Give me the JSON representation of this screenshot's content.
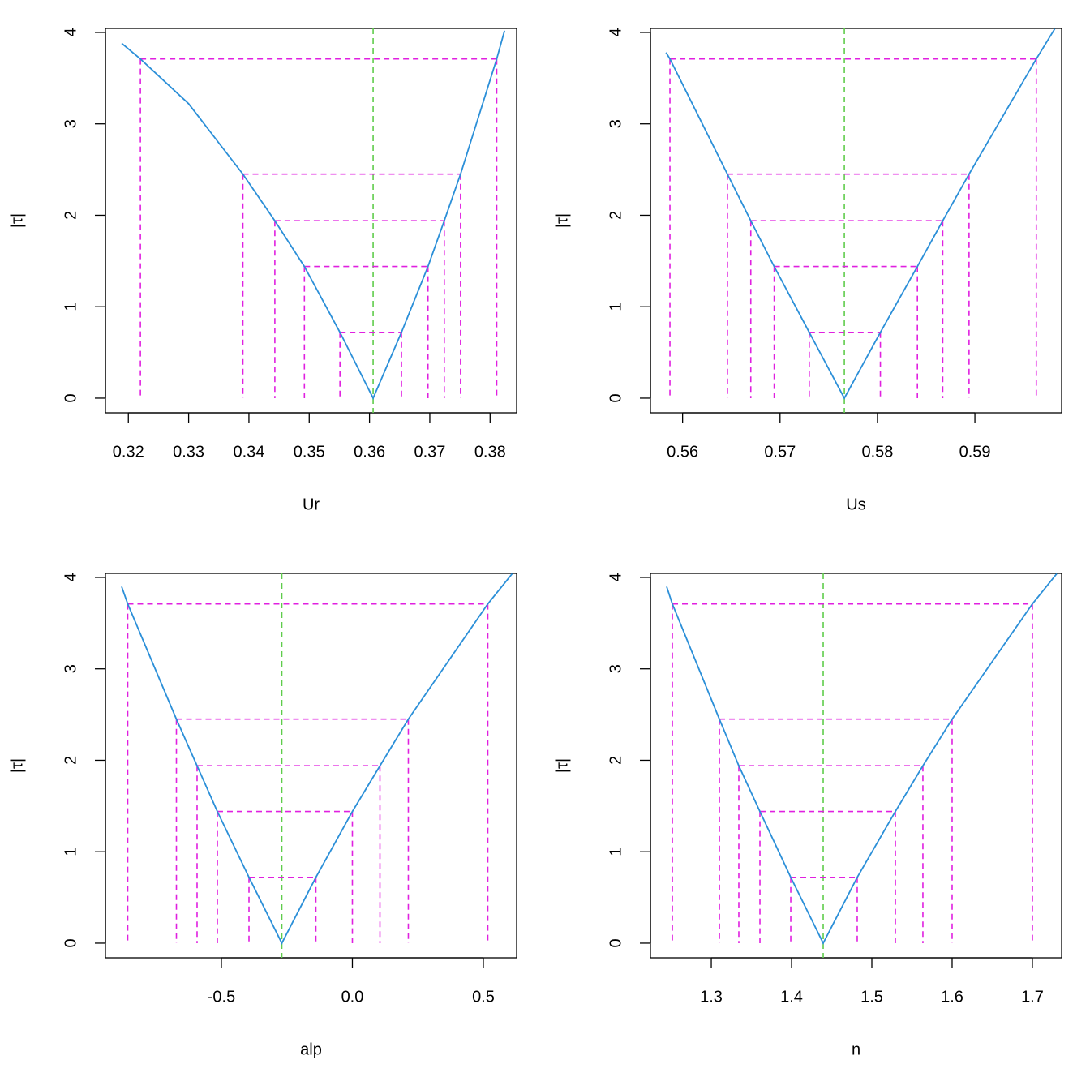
{
  "chart_data": [
    {
      "type": "line",
      "x_label": "Ur",
      "y_label": "|τ|",
      "xlim": [
        0.3162,
        0.3844
      ],
      "xticks": [
        0.32,
        0.33,
        0.34,
        0.35,
        0.36,
        0.37,
        0.38
      ],
      "ylim": [
        -0.16,
        4.044
      ],
      "yticks": [
        0,
        1,
        2,
        3,
        4
      ],
      "series": [
        {
          "color": "#2b8fd8",
          "x": [
            0.3189,
            0.322,
            0.33,
            0.339,
            0.3443,
            0.3492,
            0.3551,
            0.3606,
            0.3653,
            0.3697,
            0.3724,
            0.3751,
            0.3811,
            0.3824
          ],
          "values": [
            3.88,
            3.71,
            3.22,
            2.45,
            1.94,
            1.44,
            0.72,
            0,
            0.72,
            1.44,
            1.94,
            2.45,
            3.71,
            4.02
          ]
        }
      ],
      "estimate": 0.3606,
      "estimate_color": "#5fcc4b",
      "intervals": {
        "color": "#e020e0",
        "levels": [
          0.72,
          1.44,
          1.94,
          2.45,
          3.71
        ],
        "lower": [
          0.3551,
          0.3492,
          0.3443,
          0.339,
          0.322
        ],
        "upper": [
          0.3653,
          0.3697,
          0.3724,
          0.3751,
          0.3811
        ]
      }
    },
    {
      "type": "line",
      "x_label": "Us",
      "y_label": "|τ|",
      "xlim": [
        0.5567,
        0.5989
      ],
      "xticks": [
        0.56,
        0.57,
        0.58,
        0.59
      ],
      "ylim": [
        -0.16,
        4.044
      ],
      "yticks": [
        0,
        1,
        2,
        3,
        4
      ],
      "series": [
        {
          "color": "#2b8fd8",
          "x": [
            0.5583,
            0.5587,
            0.5646,
            0.567,
            0.5694,
            0.573,
            0.5766,
            0.5803,
            0.5841,
            0.5867,
            0.5894,
            0.5963,
            0.5982
          ],
          "values": [
            3.78,
            3.71,
            2.45,
            1.94,
            1.44,
            0.72,
            0,
            0.72,
            1.44,
            1.94,
            2.45,
            3.71,
            4.04
          ]
        }
      ],
      "estimate": 0.5766,
      "estimate_color": "#5fcc4b",
      "intervals": {
        "color": "#e020e0",
        "levels": [
          0.72,
          1.44,
          1.94,
          2.45,
          3.71
        ],
        "lower": [
          0.573,
          0.5694,
          0.567,
          0.5646,
          0.5587
        ],
        "upper": [
          0.5803,
          0.5841,
          0.5867,
          0.5894,
          0.5963
        ]
      }
    },
    {
      "type": "line",
      "x_label": "alp",
      "y_label": "|τ|",
      "xlim": [
        -0.9427,
        0.627
      ],
      "xticks": [
        -0.5,
        {
          "value": 0,
          "label": "0.0"
        },
        0.5
      ],
      "ylim": [
        -0.16,
        4.044
      ],
      "yticks": [
        0,
        1,
        2,
        3,
        4
      ],
      "series": [
        {
          "color": "#2b8fd8",
          "x": [
            -0.8808,
            -0.8576,
            -0.6718,
            -0.5929,
            -0.5155,
            -0.3947,
            -0.2693,
            -0.1393,
            0,
            0.1053,
            0.2136,
            0.517,
            0.61
          ],
          "values": [
            3.9,
            3.71,
            2.45,
            1.94,
            1.44,
            0.72,
            0,
            0.72,
            1.44,
            1.94,
            2.45,
            3.71,
            4.04
          ]
        }
      ],
      "estimate": -0.2693,
      "estimate_color": "#5fcc4b",
      "intervals": {
        "color": "#e020e0",
        "levels": [
          0.72,
          1.44,
          1.94,
          2.45,
          3.71
        ],
        "lower": [
          -0.3947,
          -0.5155,
          -0.5929,
          -0.6718,
          -0.8576
        ],
        "upper": [
          -0.1393,
          0,
          0.1053,
          0.2136,
          0.517
        ]
      }
    },
    {
      "type": "line",
      "x_label": "n",
      "y_label": "|τ|",
      "xlim": [
        1.2242,
        1.7364
      ],
      "xticks": [
        1.3,
        1.4,
        1.5,
        1.6,
        1.7
      ],
      "ylim": [
        -0.16,
        4.044
      ],
      "yticks": [
        0,
        1,
        2,
        3,
        4
      ],
      "series": [
        {
          "color": "#2b8fd8",
          "x": [
            1.2444,
            1.2515,
            1.3101,
            1.3343,
            1.3606,
            1.399,
            1.4394,
            1.4818,
            1.5293,
            1.5636,
            1.6,
            1.7,
            1.7303
          ],
          "values": [
            3.9,
            3.71,
            2.45,
            1.94,
            1.44,
            0.72,
            0,
            0.72,
            1.44,
            1.94,
            2.45,
            3.71,
            4.04
          ]
        }
      ],
      "estimate": 1.4394,
      "estimate_color": "#5fcc4b",
      "intervals": {
        "color": "#e020e0",
        "levels": [
          0.72,
          1.44,
          1.94,
          2.45,
          3.71
        ],
        "lower": [
          1.399,
          1.3606,
          1.3343,
          1.3101,
          1.2515
        ],
        "upper": [
          1.4818,
          1.5293,
          1.5636,
          1.6,
          1.7
        ]
      }
    }
  ]
}
